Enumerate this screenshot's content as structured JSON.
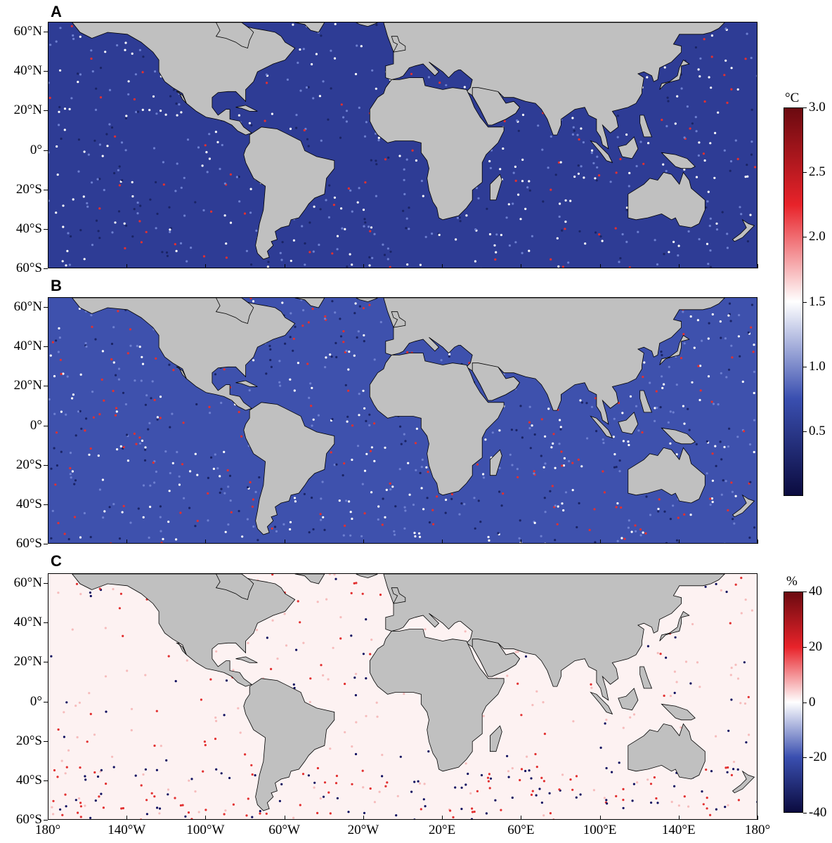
{
  "panels": [
    {
      "label": "A",
      "unit": "°C"
    },
    {
      "label": "B",
      "unit": "°C"
    },
    {
      "label": "C",
      "unit": "%"
    }
  ],
  "colorbars": [
    {
      "unit": "°C",
      "ticks": [
        "3.0",
        "2.5",
        "2.0",
        "1.5",
        "1.0",
        "0.5"
      ],
      "range": [
        0.0,
        3.0
      ],
      "colors": [
        "#0b0b3f",
        "#3a4fb0",
        "#ffffff",
        "#e8232a",
        "#6b0a10"
      ]
    },
    {
      "unit": "%",
      "ticks": [
        "40",
        "20",
        "0",
        "-20",
        "-40"
      ],
      "range": [
        -40,
        40
      ],
      "colors": [
        "#0b0b3f",
        "#3a4fb0",
        "#ffffff",
        "#e8232a",
        "#6b0a10"
      ]
    }
  ],
  "axes": {
    "lat_ticks": [
      "60°N",
      "40°N",
      "20°N",
      "0°",
      "20°S",
      "40°S",
      "60°S"
    ],
    "lon_ticks": [
      "180°",
      "140°W",
      "100°W",
      "60°W",
      "20°W",
      "20°E",
      "60°E",
      "100°E",
      "140°E",
      "180°"
    ]
  },
  "colors": {
    "land": "#c0c0c0",
    "ocean_A": "#2e3c95",
    "ocean_B": "#3e51ad",
    "ocean_C": "#fdf2f2",
    "warm": "#e23030",
    "cold": "#101060"
  }
}
